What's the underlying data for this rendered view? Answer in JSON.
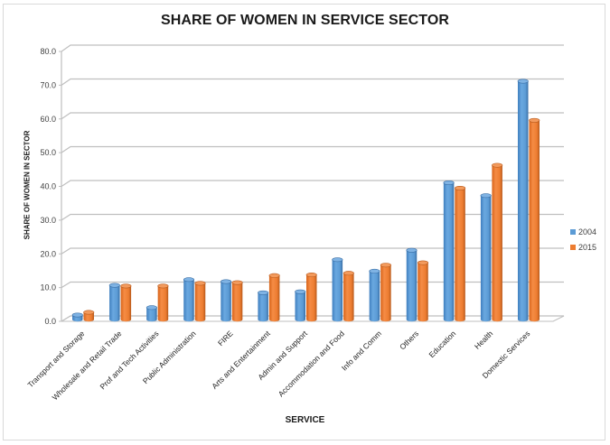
{
  "chart_data": {
    "type": "bar",
    "variant": "3d-clustered-cylinder",
    "title": "SHARE OF WOMEN IN SERVICE SECTOR",
    "xlabel": "SERVICE",
    "ylabel": "SHARE OF WOMEN IN SECTOR",
    "ylim": [
      0,
      80
    ],
    "yticks": [
      "0.0",
      "10.0",
      "20.0",
      "30.0",
      "40.0",
      "50.0",
      "60.0",
      "70.0",
      "80.0"
    ],
    "grid": true,
    "legend_position": "right",
    "categories": [
      "Transport and Storage",
      "Wholesale and Retail Trade",
      "Prof and Tech Activities",
      "Public Administration",
      "FIRE",
      "Arts and Entertainment",
      "Admin and Support",
      "Accommodation and Food",
      "Info and Comm",
      "Others",
      "Education",
      "Health",
      "Domestic Services"
    ],
    "series": [
      {
        "name": "2004",
        "color": "#5b9bd5",
        "values": [
          1.6,
          10.4,
          3.8,
          12.1,
          11.5,
          8.2,
          8.5,
          18.0,
          14.6,
          20.8,
          40.8,
          37.0,
          70.9
        ]
      },
      {
        "name": "2015",
        "color": "#ed7d31",
        "values": [
          2.4,
          10.2,
          10.2,
          11.0,
          11.2,
          13.3,
          13.5,
          14.0,
          16.4,
          17.1,
          39.2,
          46.0,
          59.3
        ]
      }
    ]
  }
}
